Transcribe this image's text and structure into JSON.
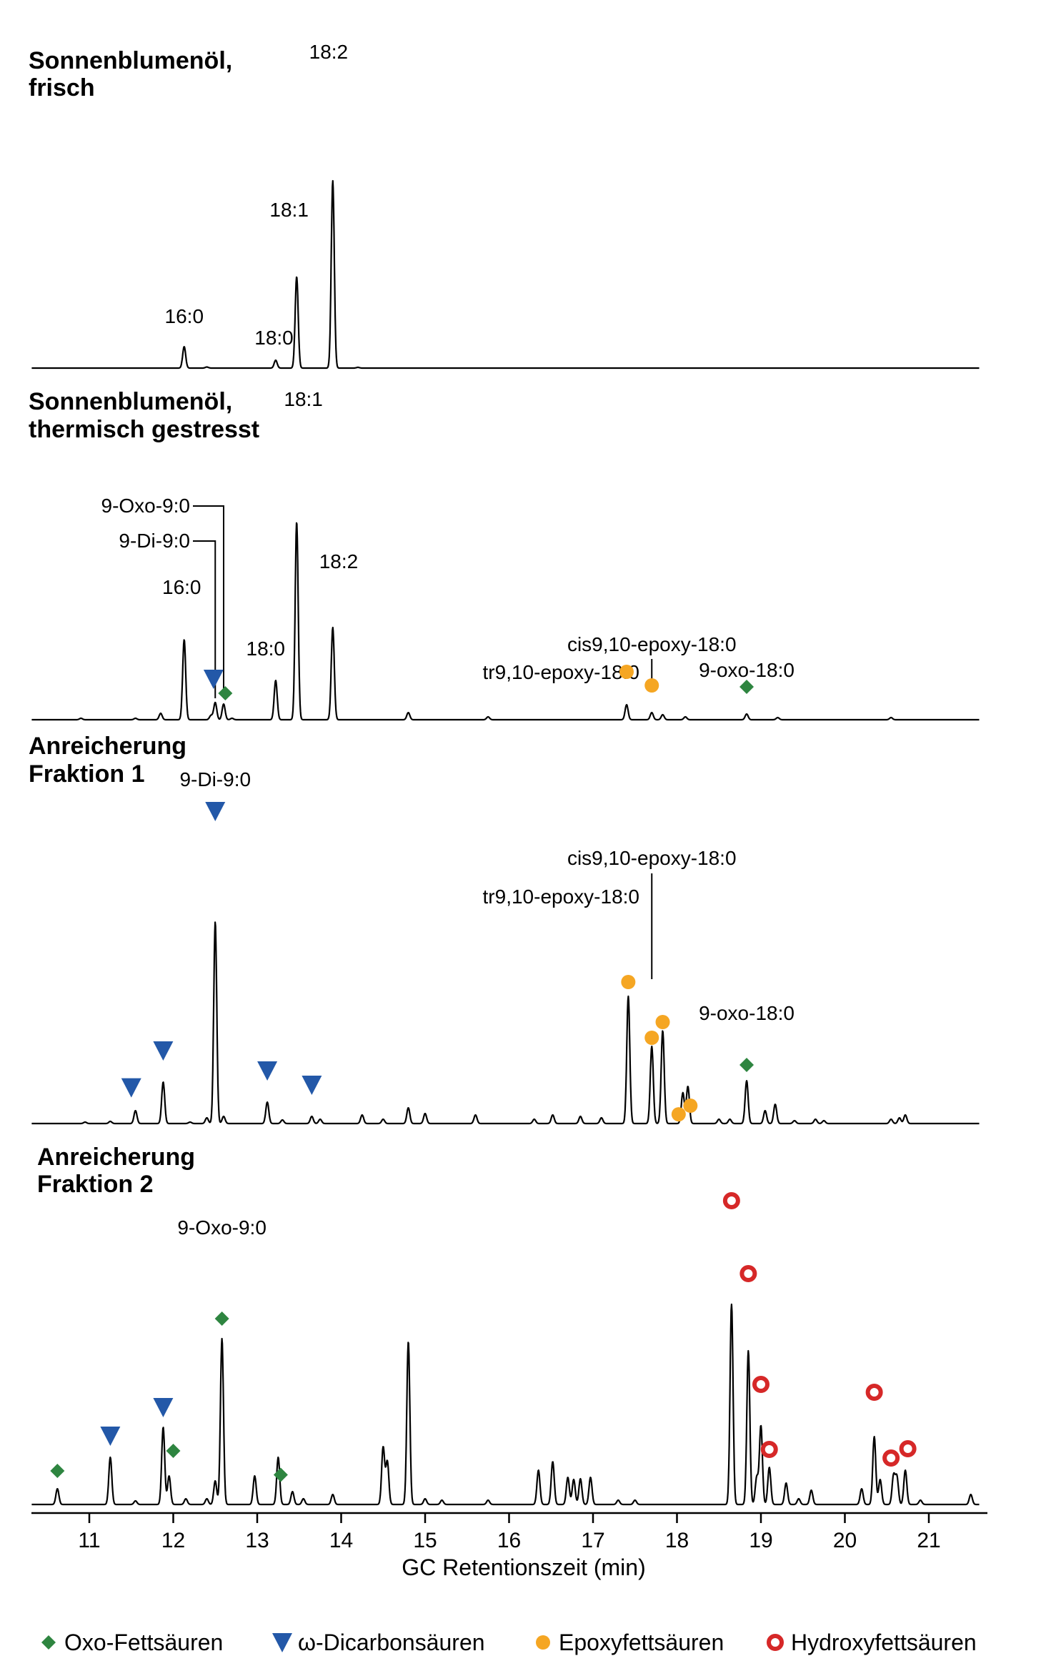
{
  "chart_data": {
    "type": "line",
    "xlabel": "GC Retentionszeit (min)",
    "xlim": [
      10.2,
      21.6
    ],
    "xticks": [
      11,
      12,
      13,
      14,
      15,
      16,
      17,
      18,
      19,
      20,
      21
    ],
    "colors": {
      "oxo": "#2e8540",
      "dicarbon": "#2358a8",
      "epoxy": "#f5a623",
      "hydroxy": "#d62828",
      "trace": "#000000"
    },
    "legend": [
      {
        "key": "oxo",
        "label": "Oxo-Fettsäuren",
        "marker": "diamond"
      },
      {
        "key": "dicarbon",
        "label": "ω-Dicarbonsäuren",
        "marker": "triangle-down"
      },
      {
        "key": "epoxy",
        "label": "Epoxyfettsäuren",
        "marker": "filled-circle"
      },
      {
        "key": "hydroxy",
        "label": "Hydroxyfettsäuren",
        "marker": "open-circle"
      }
    ],
    "panels": [
      {
        "title_lines": [
          "Sonnenblumenöl,",
          "frisch"
        ],
        "peaks": [
          [
            12.13,
            30
          ],
          [
            12.4,
            1.5
          ],
          [
            13.22,
            11
          ],
          [
            13.47,
            128
          ],
          [
            13.9,
            262
          ],
          [
            14.2,
            1
          ]
        ],
        "labels": [
          {
            "text": "16:0",
            "x": 12.13
          },
          {
            "text": "18:0",
            "x": 13.2
          },
          {
            "text": "18:1",
            "x": 13.38
          },
          {
            "text": "18:2",
            "x": 13.85
          }
        ],
        "markers": []
      },
      {
        "title_lines": [
          "Sonnenblumenöl,",
          "thermisch gestresst"
        ],
        "peaks": [
          [
            10.9,
            2
          ],
          [
            11.55,
            2
          ],
          [
            11.85,
            9
          ],
          [
            12.13,
            112
          ],
          [
            12.45,
            6
          ],
          [
            12.5,
            24
          ],
          [
            12.6,
            22
          ],
          [
            12.7,
            2
          ],
          [
            13.22,
            55
          ],
          [
            13.47,
            277
          ],
          [
            13.9,
            129
          ],
          [
            14.8,
            10
          ],
          [
            15.75,
            4
          ],
          [
            17.4,
            21
          ],
          [
            17.7,
            10
          ],
          [
            17.83,
            7
          ],
          [
            18.1,
            4
          ],
          [
            18.83,
            8
          ],
          [
            19.2,
            3
          ],
          [
            20.55,
            3
          ]
        ],
        "labels": [
          {
            "text": "16:0",
            "x": 12.1
          },
          {
            "text": "18:0",
            "x": 13.1
          },
          {
            "text": "18:1",
            "x": 13.55
          },
          {
            "text": "18:2",
            "x": 13.97
          },
          {
            "text": "9-Oxo-9:0",
            "x": 12.6
          },
          {
            "text": "9-Di-9:0",
            "x": 12.5
          },
          {
            "text": "cis9,10-epoxy-18:0",
            "x": 17.7
          },
          {
            "text": "tr9,10-epoxy-18:0",
            "x": 17.4
          },
          {
            "text": "9-oxo-18:0",
            "x": 18.83
          }
        ],
        "markers": [
          {
            "type": "dicarbon",
            "x": 12.48
          },
          {
            "type": "oxo",
            "x": 12.62
          },
          {
            "type": "epoxy",
            "x": 17.4
          },
          {
            "type": "epoxy",
            "x": 17.7
          },
          {
            "type": "oxo",
            "x": 18.83
          }
        ]
      },
      {
        "title_lines": [
          "Anreicherung",
          "Fraktion 1"
        ],
        "peaks": [
          [
            10.95,
            2
          ],
          [
            11.25,
            3
          ],
          [
            11.55,
            18
          ],
          [
            11.88,
            58
          ],
          [
            12.2,
            2
          ],
          [
            12.4,
            8
          ],
          [
            12.5,
            282
          ],
          [
            12.6,
            10
          ],
          [
            13.12,
            30
          ],
          [
            13.3,
            5
          ],
          [
            13.65,
            10
          ],
          [
            13.75,
            6
          ],
          [
            14.25,
            12
          ],
          [
            14.5,
            6
          ],
          [
            14.8,
            22
          ],
          [
            15.0,
            14
          ],
          [
            15.6,
            12
          ],
          [
            16.3,
            6
          ],
          [
            16.52,
            12
          ],
          [
            16.85,
            10
          ],
          [
            17.1,
            8
          ],
          [
            17.42,
            178
          ],
          [
            17.7,
            108
          ],
          [
            17.83,
            130
          ],
          [
            18.07,
            43
          ],
          [
            18.13,
            52
          ],
          [
            18.5,
            6
          ],
          [
            18.63,
            6
          ],
          [
            18.83,
            60
          ],
          [
            19.05,
            18
          ],
          [
            19.17,
            27
          ],
          [
            19.4,
            4
          ],
          [
            19.65,
            6
          ],
          [
            19.75,
            4
          ],
          [
            20.55,
            6
          ],
          [
            20.65,
            8
          ],
          [
            20.72,
            12
          ]
        ],
        "labels": [
          {
            "text": "9-Di-9:0",
            "x": 12.5
          },
          {
            "text": "cis9,10-epoxy-18:0",
            "x": 17.7
          },
          {
            "text": "tr9,10-epoxy-18:0",
            "x": 17.42
          },
          {
            "text": "9-oxo-18:0",
            "x": 18.83
          }
        ],
        "markers": [
          {
            "type": "dicarbon",
            "x": 11.5
          },
          {
            "type": "dicarbon",
            "x": 11.88
          },
          {
            "type": "dicarbon",
            "x": 12.5
          },
          {
            "type": "dicarbon",
            "x": 13.12
          },
          {
            "type": "dicarbon",
            "x": 13.65
          },
          {
            "type": "epoxy",
            "x": 17.42
          },
          {
            "type": "epoxy",
            "x": 17.7
          },
          {
            "type": "epoxy",
            "x": 17.83
          },
          {
            "type": "epoxy",
            "x": 18.02
          },
          {
            "type": "epoxy",
            "x": 18.16
          },
          {
            "type": "oxo",
            "x": 18.83
          }
        ]
      },
      {
        "title_lines": [
          "Anreicherung",
          "Fraktion 2"
        ],
        "peaks": [
          [
            10.62,
            22
          ],
          [
            11.25,
            66
          ],
          [
            11.55,
            5
          ],
          [
            11.88,
            108
          ],
          [
            11.95,
            40
          ],
          [
            12.15,
            8
          ],
          [
            12.4,
            8
          ],
          [
            12.5,
            33
          ],
          [
            12.58,
            232
          ],
          [
            12.97,
            40
          ],
          [
            13.25,
            66
          ],
          [
            13.42,
            18
          ],
          [
            13.55,
            8
          ],
          [
            13.9,
            14
          ],
          [
            14.5,
            80
          ],
          [
            14.55,
            60
          ],
          [
            14.8,
            228
          ],
          [
            15.0,
            8
          ],
          [
            15.2,
            6
          ],
          [
            15.75,
            6
          ],
          [
            16.35,
            48
          ],
          [
            16.52,
            60
          ],
          [
            16.7,
            38
          ],
          [
            16.77,
            35
          ],
          [
            16.85,
            36
          ],
          [
            16.97,
            38
          ],
          [
            17.3,
            6
          ],
          [
            17.5,
            6
          ],
          [
            18.65,
            280
          ],
          [
            18.85,
            215
          ],
          [
            18.95,
            38
          ],
          [
            19.0,
            110
          ],
          [
            19.1,
            52
          ],
          [
            19.3,
            30
          ],
          [
            19.45,
            8
          ],
          [
            19.6,
            20
          ],
          [
            20.2,
            22
          ],
          [
            20.35,
            95
          ],
          [
            20.42,
            35
          ],
          [
            20.58,
            40
          ],
          [
            20.62,
            38
          ],
          [
            20.72,
            48
          ],
          [
            20.9,
            6
          ],
          [
            21.5,
            14
          ]
        ],
        "labels": [
          {
            "text": "9-Oxo-9:0",
            "x": 12.58
          }
        ],
        "markers": [
          {
            "type": "oxo",
            "x": 10.62
          },
          {
            "type": "dicarbon",
            "x": 11.25
          },
          {
            "type": "dicarbon",
            "x": 11.88
          },
          {
            "type": "oxo",
            "x": 12.0
          },
          {
            "type": "oxo",
            "x": 12.58
          },
          {
            "type": "oxo",
            "x": 13.28
          },
          {
            "type": "hydroxy",
            "x": 18.65
          },
          {
            "type": "hydroxy",
            "x": 18.85
          },
          {
            "type": "hydroxy",
            "x": 19.0
          },
          {
            "type": "hydroxy",
            "x": 19.1
          },
          {
            "type": "hydroxy",
            "x": 20.35
          },
          {
            "type": "hydroxy",
            "x": 20.55
          },
          {
            "type": "hydroxy",
            "x": 20.75
          }
        ]
      }
    ]
  }
}
